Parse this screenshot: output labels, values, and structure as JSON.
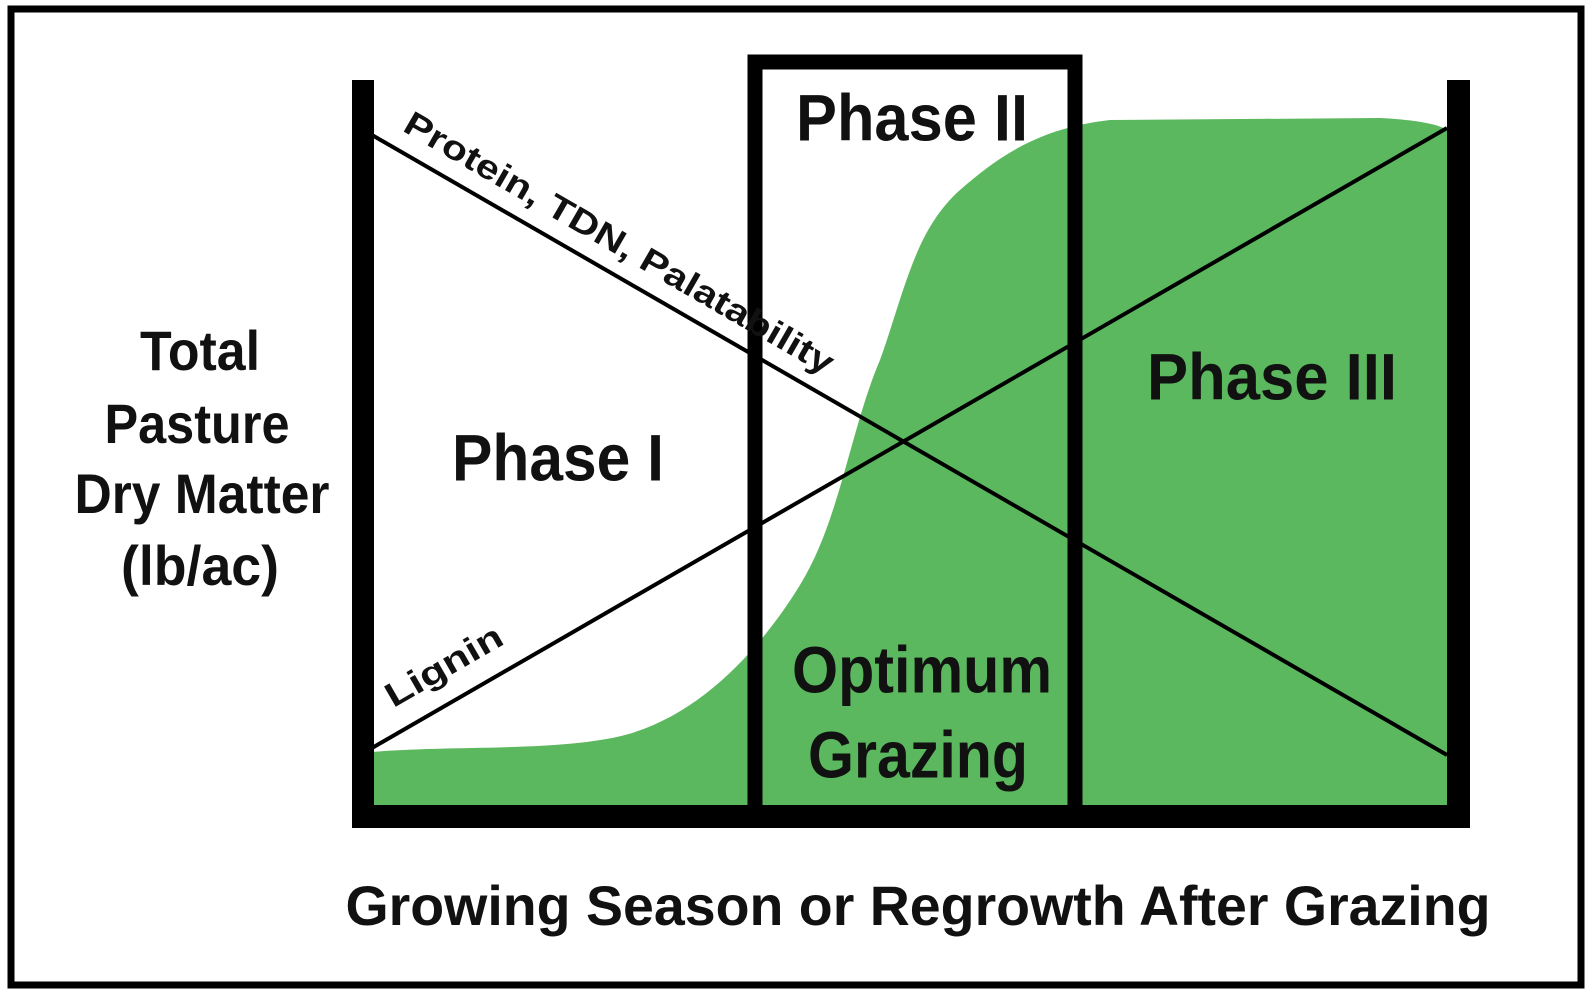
{
  "y_axis_label": {
    "lines": [
      "Total",
      "Pasture",
      "Dry Matter",
      "(lb/ac)"
    ]
  },
  "x_axis_label": "Growing Season or Regrowth After Grazing",
  "phases": [
    {
      "label": "Phase I"
    },
    {
      "label": "Phase II"
    },
    {
      "label": "Phase III"
    }
  ],
  "optimum": {
    "lines": [
      "Optimum",
      "Grazing"
    ]
  },
  "curves": [
    {
      "label": "Protein, TDN, Palatability"
    },
    {
      "label": "Lignin"
    }
  ]
}
